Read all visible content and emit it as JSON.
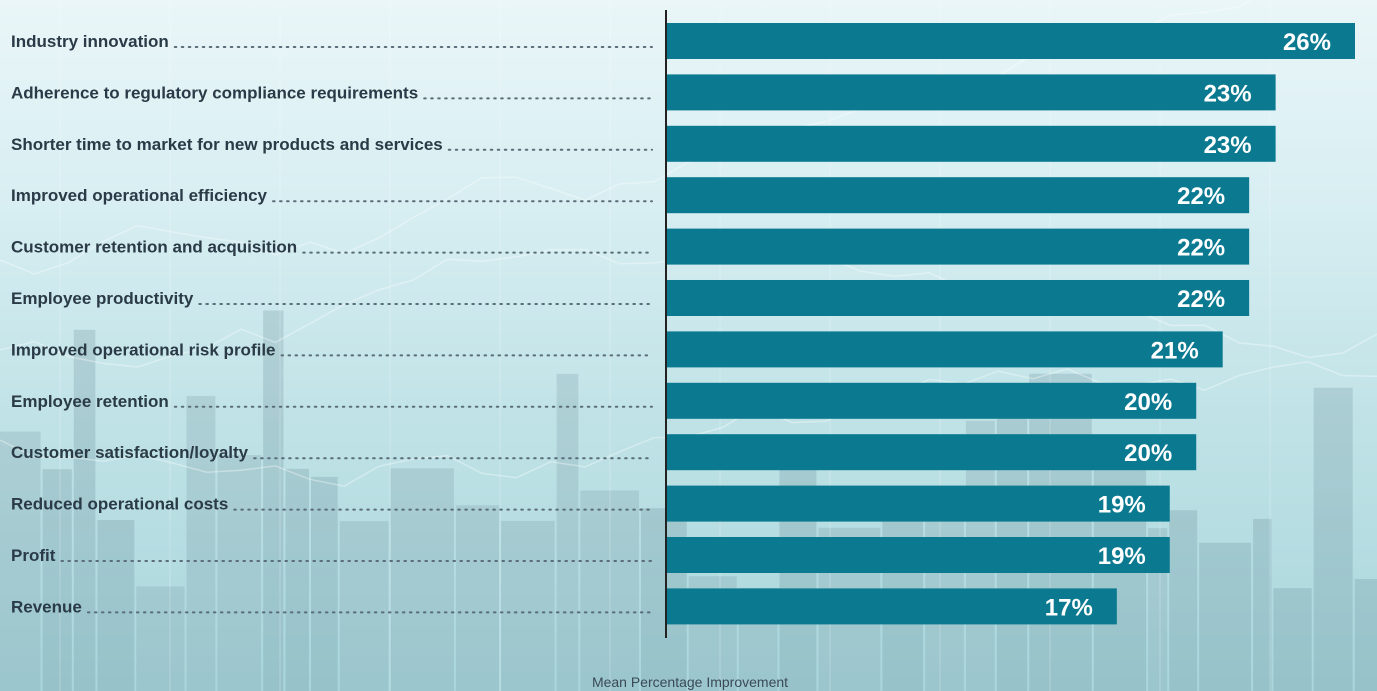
{
  "chart_data": {
    "type": "bar",
    "orientation": "horizontal",
    "categories": [
      "Industry innovation",
      "Adherence to regulatory compliance requirements",
      "Shorter time to market for new products and services",
      "Improved operational efficiency",
      "Customer retention and acquisition",
      "Employee productivity",
      "Improved operational risk profile",
      "Employee retention",
      "Customer satisfaction/loyalty",
      "Reduced operational costs",
      "Profit",
      "Revenue"
    ],
    "values": [
      26,
      23,
      23,
      22,
      22,
      22,
      21,
      20,
      20,
      19,
      19,
      17
    ],
    "value_labels": [
      "26%",
      "23%",
      "23%",
      "22%",
      "22%",
      "22%",
      "21%",
      "20%",
      "20%",
      "19%",
      "19%",
      "17%"
    ],
    "xlabel": "Mean Percentage Improvement",
    "xlim": [
      0,
      27
    ],
    "grid": false,
    "legend": "none",
    "colors": {
      "bar": "#0b7a90",
      "value_text": "#ffffff",
      "category_text": "#2a3a46"
    }
  }
}
